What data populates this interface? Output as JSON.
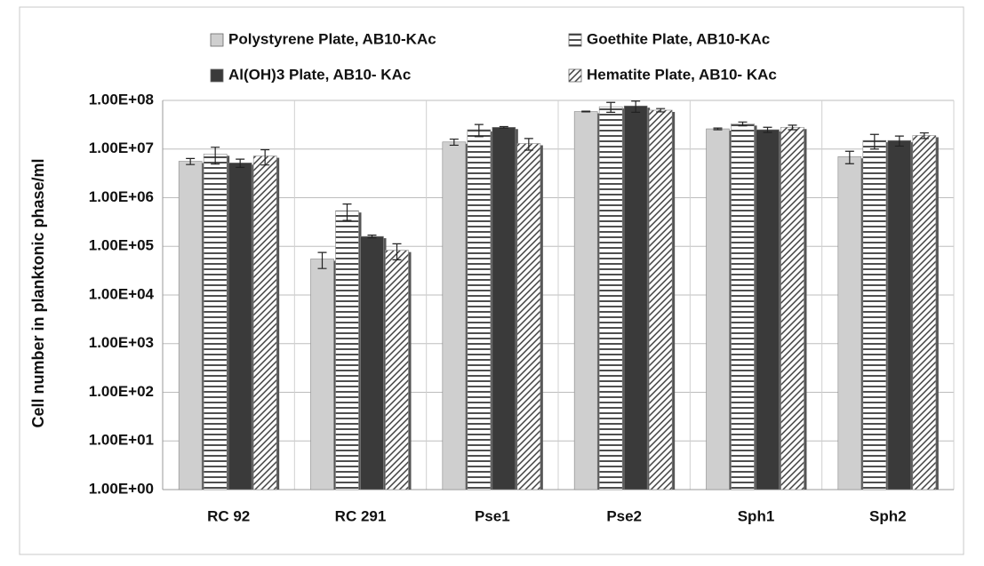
{
  "chart_data": {
    "type": "bar",
    "y_label": "Cell number in planktonic phase/ml",
    "log_y": true,
    "grid": true,
    "categories": [
      "RC 92",
      "RC 291",
      "Pse1",
      "Pse2",
      "Sph1",
      "Sph2"
    ],
    "ylim": [
      1,
      100000000
    ],
    "yticks": [
      {
        "value": 1,
        "label": "1.00E+00"
      },
      {
        "value": 10,
        "label": "1.00E+01"
      },
      {
        "value": 100,
        "label": "1.00E+02"
      },
      {
        "value": 1000,
        "label": "1.00E+03"
      },
      {
        "value": 10000,
        "label": "1.00E+04"
      },
      {
        "value": 100000,
        "label": "1.00E+05"
      },
      {
        "value": 1000000,
        "label": "1.00E+06"
      },
      {
        "value": 10000000,
        "label": "1.00E+07"
      },
      {
        "value": 100000000,
        "label": "1.00E+08"
      }
    ],
    "series": [
      {
        "name": "Polystyrene Plate, AB10-KAc",
        "color": "#cfcfcf",
        "pattern": "solid",
        "values": [
          5600000,
          55000,
          14000000,
          59000000,
          26000000,
          7000000
        ],
        "errors": [
          800000,
          20000,
          2000000,
          1000000,
          1000000,
          2000000
        ]
      },
      {
        "name": "Goethite Plate, AB10-KAc",
        "color": "#222222",
        "pattern": "horizontal",
        "values": [
          7900000,
          540000,
          25000000,
          74000000,
          33000000,
          15000000
        ],
        "errors": [
          3000000,
          200000,
          7000000,
          17000000,
          3000000,
          5000000
        ]
      },
      {
        "name": "Al(OH)3 Plate, AB10- KAc",
        "color": "#3a3a3a",
        "pattern": "solid",
        "values": [
          5200000,
          160000,
          28000000,
          77000000,
          25000000,
          15000000
        ],
        "errors": [
          1000000,
          10000,
          1000000,
          20000000,
          3000000,
          3500000
        ]
      },
      {
        "name": "Hematite Plate, AB10- KAc",
        "color": "#333333",
        "pattern": "diagonal",
        "values": [
          7200000,
          83000,
          13000000,
          63000000,
          28000000,
          19000000
        ],
        "errors": [
          2500000,
          30000,
          3500000,
          5000000,
          3000000,
          2500000
        ]
      }
    ]
  }
}
